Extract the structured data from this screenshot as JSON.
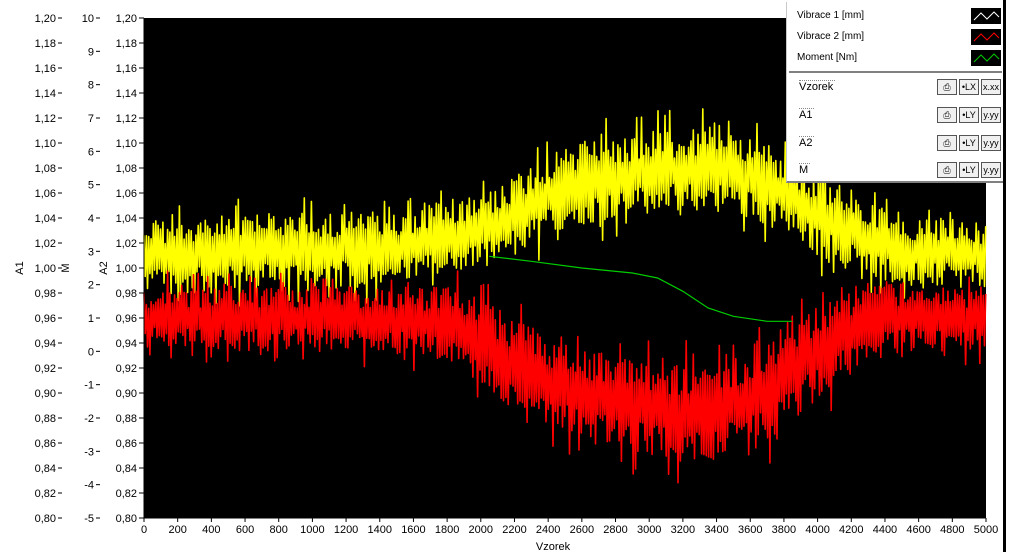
{
  "chart_data": {
    "type": "line",
    "xlabel": "Vzorek",
    "xlim": [
      0,
      5000
    ],
    "x_ticks": [
      0,
      200,
      400,
      600,
      800,
      1000,
      1200,
      1400,
      1600,
      1800,
      2000,
      2200,
      2400,
      2600,
      2800,
      3000,
      3200,
      3400,
      3600,
      3800,
      4000,
      4200,
      4400,
      4600,
      4800,
      5000
    ],
    "y_axes": [
      {
        "label": "A1",
        "lim": [
          0.8,
          1.2
        ],
        "ticks": [
          "1,20",
          "1,18",
          "1,16",
          "1,14",
          "1,12",
          "1,10",
          "1,08",
          "1,06",
          "1,04",
          "1,02",
          "1,00",
          "0,98",
          "0,96",
          "0,94",
          "0,92",
          "0,90",
          "0,88",
          "0,86",
          "0,84",
          "0,82",
          "0,80"
        ]
      },
      {
        "label": "M",
        "lim": [
          -5,
          10
        ],
        "ticks": [
          "10",
          "9",
          "8",
          "7",
          "6",
          "5",
          "4",
          "3",
          "2",
          "1",
          "0",
          "-1",
          "-2",
          "-3",
          "-4",
          "-5"
        ]
      },
      {
        "label": "A2",
        "lim": [
          0.8,
          1.2
        ],
        "ticks": [
          "1,20",
          "1,18",
          "1,16",
          "1,14",
          "1,12",
          "1,10",
          "1,08",
          "1,06",
          "1,04",
          "1,02",
          "1,00",
          "0,98",
          "0,96",
          "0,94",
          "0,92",
          "0,90",
          "0,88",
          "0,86",
          "0,84",
          "0,82",
          "0,80"
        ]
      }
    ],
    "background": "#000000",
    "series": [
      {
        "name": "Vibrace 1 [mm]",
        "color": "#ffff00",
        "axis": "A1",
        "envelope": {
          "x": [
            0,
            400,
            800,
            1200,
            1600,
            1800,
            2000,
            2200,
            2400,
            2600,
            2800,
            3000,
            3200,
            3400,
            3600,
            3800,
            4000,
            4200,
            4400,
            4600,
            4800,
            5000
          ],
          "upper": [
            1.04,
            1.04,
            1.045,
            1.045,
            1.045,
            1.05,
            1.06,
            1.075,
            1.09,
            1.1,
            1.105,
            1.11,
            1.11,
            1.115,
            1.105,
            1.09,
            1.075,
            1.06,
            1.045,
            1.04,
            1.04,
            1.035
          ],
          "lower": [
            0.98,
            0.98,
            0.985,
            0.985,
            0.99,
            0.995,
            1.0,
            1.01,
            1.025,
            1.035,
            1.04,
            1.045,
            1.045,
            1.045,
            1.04,
            1.03,
            1.01,
            1.0,
            0.99,
            0.985,
            0.985,
            0.985
          ]
        }
      },
      {
        "name": "Vibrace 2 [mm]",
        "color": "#ff0000",
        "axis": "A2",
        "envelope": {
          "x": [
            0,
            400,
            800,
            1200,
            1600,
            1800,
            2000,
            2200,
            2400,
            2600,
            2800,
            3000,
            3200,
            3400,
            3600,
            3800,
            4000,
            4200,
            4400,
            4600,
            4800,
            5000
          ],
          "upper": [
            0.985,
            0.985,
            0.985,
            0.985,
            0.985,
            0.985,
            0.975,
            0.96,
            0.945,
            0.935,
            0.93,
            0.925,
            0.925,
            0.93,
            0.94,
            0.955,
            0.975,
            0.985,
            0.99,
            0.985,
            0.985,
            0.985
          ],
          "lower": [
            0.935,
            0.935,
            0.935,
            0.935,
            0.93,
            0.925,
            0.905,
            0.885,
            0.875,
            0.865,
            0.855,
            0.85,
            0.845,
            0.845,
            0.85,
            0.87,
            0.895,
            0.915,
            0.93,
            0.935,
            0.935,
            0.935
          ]
        }
      },
      {
        "name": "Moment [Nm]",
        "color": "#00cc00",
        "axis": "M",
        "points": {
          "x": [
            2050,
            2300,
            2600,
            2900,
            3050,
            3200,
            3350,
            3500,
            3700,
            3850
          ],
          "y": [
            2.85,
            2.7,
            2.5,
            2.35,
            2.2,
            1.8,
            1.3,
            1.05,
            0.9,
            0.9
          ]
        }
      }
    ]
  },
  "legend": {
    "entries": [
      {
        "label": "Vibrace 1 [mm]",
        "color": "#ffffff"
      },
      {
        "label": "Vibrace 2 [mm]",
        "color": "#ff0000"
      },
      {
        "label": "Moment [Nm]",
        "color": "#00cc00"
      }
    ],
    "axes": [
      {
        "name": "Vzorek",
        "btn_format": "x.xx",
        "btn_scale": "•LX"
      },
      {
        "name": "A1",
        "btn_format": "y.yy",
        "btn_scale": "•LY"
      },
      {
        "name": "A2",
        "btn_format": "y.yy",
        "btn_scale": "•LY"
      },
      {
        "name": "M",
        "btn_format": "y.yy",
        "btn_scale": "•LY"
      }
    ]
  }
}
